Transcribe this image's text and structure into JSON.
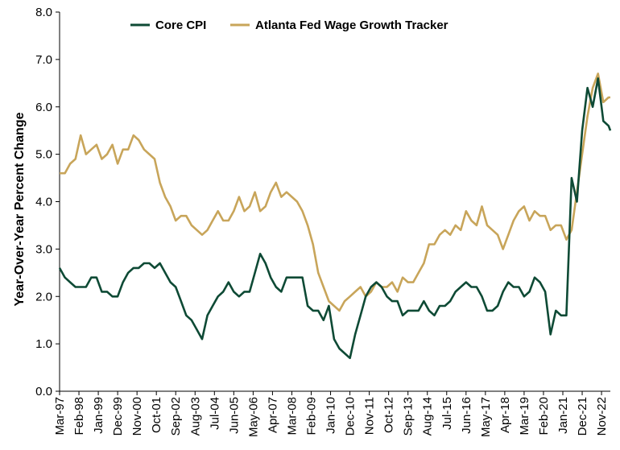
{
  "chart_data": {
    "type": "line",
    "title": "",
    "xlabel": "",
    "ylabel": "Year-Over-Year Percent Change",
    "ylim": [
      0,
      8
    ],
    "yticks": [
      "0.0",
      "1.0",
      "2.0",
      "3.0",
      "4.0",
      "5.0",
      "6.0",
      "7.0",
      "8.0"
    ],
    "x_start": "Mar-97",
    "x_end": "Apr-23",
    "xtick_labels": [
      "Mar-97",
      "Feb-98",
      "Jan-99",
      "Dec-99",
      "Nov-00",
      "Oct-01",
      "Sep-02",
      "Aug-03",
      "Jul-04",
      "Jun-05",
      "May-06",
      "Apr-07",
      "Mar-08",
      "Feb-09",
      "Jan-10",
      "Dec-10",
      "Nov-11",
      "Oct-12",
      "Sep-13",
      "Aug-14",
      "Jul-15",
      "Jun-16",
      "May-17",
      "Apr-18",
      "Mar-19",
      "Feb-20",
      "Jan-21",
      "Dec-21",
      "Nov-22"
    ],
    "legend_position": "top",
    "grid": false,
    "series": [
      {
        "name": "Core CPI",
        "color": "#0e4a35",
        "x": [
          "Mar-97",
          "Jun-97",
          "Sep-97",
          "Dec-97",
          "Mar-98",
          "Jun-98",
          "Sep-98",
          "Dec-98",
          "Mar-99",
          "Jun-99",
          "Sep-99",
          "Dec-99",
          "Mar-00",
          "Jun-00",
          "Sep-00",
          "Dec-00",
          "Mar-01",
          "Jun-01",
          "Sep-01",
          "Dec-01",
          "Mar-02",
          "Jun-02",
          "Sep-02",
          "Dec-02",
          "Mar-03",
          "Jun-03",
          "Sep-03",
          "Dec-03",
          "Mar-04",
          "Jun-04",
          "Sep-04",
          "Dec-04",
          "Mar-05",
          "Jun-05",
          "Sep-05",
          "Dec-05",
          "Mar-06",
          "Jun-06",
          "Sep-06",
          "Dec-06",
          "Mar-07",
          "Jun-07",
          "Sep-07",
          "Dec-07",
          "Mar-08",
          "Jun-08",
          "Sep-08",
          "Dec-08",
          "Mar-09",
          "Jun-09",
          "Sep-09",
          "Dec-09",
          "Mar-10",
          "Jun-10",
          "Sep-10",
          "Dec-10",
          "Mar-11",
          "Jun-11",
          "Sep-11",
          "Dec-11",
          "Mar-12",
          "Jun-12",
          "Sep-12",
          "Dec-12",
          "Mar-13",
          "Jun-13",
          "Sep-13",
          "Dec-13",
          "Mar-14",
          "Jun-14",
          "Sep-14",
          "Dec-14",
          "Mar-15",
          "Jun-15",
          "Sep-15",
          "Dec-15",
          "Mar-16",
          "Jun-16",
          "Sep-16",
          "Dec-16",
          "Mar-17",
          "Jun-17",
          "Sep-17",
          "Dec-17",
          "Mar-18",
          "Jun-18",
          "Sep-18",
          "Dec-18",
          "Mar-19",
          "Jun-19",
          "Sep-19",
          "Dec-19",
          "Mar-20",
          "Jun-20",
          "Sep-20",
          "Dec-20",
          "Mar-21",
          "Jun-21",
          "Sep-21",
          "Dec-21",
          "Mar-22",
          "Jun-22",
          "Sep-22",
          "Dec-22",
          "Mar-23",
          "Apr-23"
        ],
        "values": [
          2.6,
          2.4,
          2.3,
          2.2,
          2.2,
          2.2,
          2.4,
          2.4,
          2.1,
          2.1,
          2.0,
          2.0,
          2.3,
          2.5,
          2.6,
          2.6,
          2.7,
          2.7,
          2.6,
          2.7,
          2.5,
          2.3,
          2.2,
          1.9,
          1.6,
          1.5,
          1.3,
          1.1,
          1.6,
          1.8,
          2.0,
          2.1,
          2.3,
          2.1,
          2.0,
          2.1,
          2.1,
          2.5,
          2.9,
          2.7,
          2.4,
          2.2,
          2.1,
          2.4,
          2.4,
          2.4,
          2.4,
          1.8,
          1.7,
          1.7,
          1.5,
          1.8,
          1.1,
          0.9,
          0.8,
          0.7,
          1.2,
          1.6,
          2.0,
          2.2,
          2.3,
          2.2,
          2.0,
          1.9,
          1.9,
          1.6,
          1.7,
          1.7,
          1.7,
          1.9,
          1.7,
          1.6,
          1.8,
          1.8,
          1.9,
          2.1,
          2.2,
          2.3,
          2.2,
          2.2,
          2.0,
          1.7,
          1.7,
          1.8,
          2.1,
          2.3,
          2.2,
          2.2,
          2.0,
          2.1,
          2.4,
          2.3,
          2.1,
          1.2,
          1.7,
          1.6,
          1.6,
          4.5,
          4.0,
          5.5,
          6.4,
          6.0,
          6.6,
          5.7,
          5.6,
          5.5
        ]
      },
      {
        "name": "Atlanta Fed Wage Growth Tracker",
        "color": "#c8a55a",
        "x": [
          "Mar-97",
          "Jun-97",
          "Sep-97",
          "Dec-97",
          "Mar-98",
          "Jun-98",
          "Sep-98",
          "Dec-98",
          "Mar-99",
          "Jun-99",
          "Sep-99",
          "Dec-99",
          "Mar-00",
          "Jun-00",
          "Sep-00",
          "Dec-00",
          "Mar-01",
          "Jun-01",
          "Sep-01",
          "Dec-01",
          "Mar-02",
          "Jun-02",
          "Sep-02",
          "Dec-02",
          "Mar-03",
          "Jun-03",
          "Sep-03",
          "Dec-03",
          "Mar-04",
          "Jun-04",
          "Sep-04",
          "Dec-04",
          "Mar-05",
          "Jun-05",
          "Sep-05",
          "Dec-05",
          "Mar-06",
          "Jun-06",
          "Sep-06",
          "Dec-06",
          "Mar-07",
          "Jun-07",
          "Sep-07",
          "Dec-07",
          "Mar-08",
          "Jun-08",
          "Sep-08",
          "Dec-08",
          "Mar-09",
          "Jun-09",
          "Sep-09",
          "Dec-09",
          "Mar-10",
          "Jun-10",
          "Sep-10",
          "Dec-10",
          "Mar-11",
          "Jun-11",
          "Sep-11",
          "Dec-11",
          "Mar-12",
          "Jun-12",
          "Sep-12",
          "Dec-12",
          "Mar-13",
          "Jun-13",
          "Sep-13",
          "Dec-13",
          "Mar-14",
          "Jun-14",
          "Sep-14",
          "Dec-14",
          "Mar-15",
          "Jun-15",
          "Sep-15",
          "Dec-15",
          "Mar-16",
          "Jun-16",
          "Sep-16",
          "Dec-16",
          "Mar-17",
          "Jun-17",
          "Sep-17",
          "Dec-17",
          "Mar-18",
          "Jun-18",
          "Sep-18",
          "Dec-18",
          "Mar-19",
          "Jun-19",
          "Sep-19",
          "Dec-19",
          "Mar-20",
          "Jun-20",
          "Sep-20",
          "Dec-20",
          "Mar-21",
          "Jun-21",
          "Sep-21",
          "Dec-21",
          "Mar-22",
          "Jun-22",
          "Sep-22",
          "Dec-22",
          "Mar-23",
          "Apr-23"
        ],
        "values": [
          4.6,
          4.6,
          4.8,
          4.9,
          5.4,
          5.0,
          5.1,
          5.2,
          4.9,
          5.0,
          5.2,
          4.8,
          5.1,
          5.1,
          5.4,
          5.3,
          5.1,
          5.0,
          4.9,
          4.4,
          4.1,
          3.9,
          3.6,
          3.7,
          3.7,
          3.5,
          3.4,
          3.3,
          3.4,
          3.6,
          3.8,
          3.6,
          3.6,
          3.8,
          4.1,
          3.8,
          3.9,
          4.2,
          3.8,
          3.9,
          4.2,
          4.4,
          4.1,
          4.2,
          4.1,
          4.0,
          3.8,
          3.5,
          3.1,
          2.5,
          2.2,
          1.9,
          1.8,
          1.7,
          1.9,
          2.0,
          2.1,
          2.2,
          2.0,
          2.1,
          2.3,
          2.2,
          2.2,
          2.3,
          2.1,
          2.4,
          2.3,
          2.3,
          2.5,
          2.7,
          3.1,
          3.1,
          3.3,
          3.4,
          3.3,
          3.5,
          3.4,
          3.8,
          3.6,
          3.5,
          3.9,
          3.5,
          3.4,
          3.3,
          3.0,
          3.3,
          3.6,
          3.8,
          3.9,
          3.6,
          3.8,
          3.7,
          3.7,
          3.4,
          3.5,
          3.5,
          3.2,
          3.4,
          4.2,
          5.0,
          5.8,
          6.4,
          6.7,
          6.1,
          6.2,
          6.2
        ]
      }
    ]
  }
}
